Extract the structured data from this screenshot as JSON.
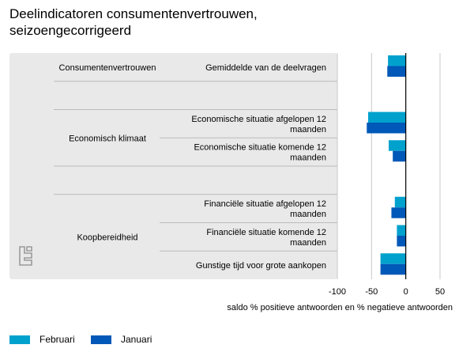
{
  "title_lines": [
    "Deelindicatoren consumentenvertrouwen,",
    "seizoengecorrigeerd"
  ],
  "colors": {
    "februari": "#00a1cd",
    "januari": "#0058b8",
    "panel": "#e9e9e9",
    "grid": "#c8c8c8",
    "zero": "#000000"
  },
  "logo": "cbs-logo-icon",
  "chart_data": {
    "type": "bar",
    "orientation": "horizontal",
    "groups": [
      {
        "name": "Consumentenvertrouwen",
        "rows": [
          0
        ]
      },
      {
        "name": "Economisch klimaat",
        "rows": [
          2,
          3
        ]
      },
      {
        "name": "Koopbereidheid",
        "rows": [
          5,
          6,
          7
        ]
      }
    ],
    "categories": [
      [
        "Gemiddelde van de deelvragen"
      ],
      [],
      [
        "Economische situatie afgelopen 12",
        "maanden"
      ],
      [
        "Economische situatie komende 12",
        "maanden"
      ],
      [],
      [
        "Financiële situatie afgelopen 12",
        "maanden"
      ],
      [
        "Financiële situatie komende 12",
        "maanden"
      ],
      [
        "Gunstige tijd voor grote aankopen"
      ]
    ],
    "series": [
      {
        "name": "Februari",
        "color": "#00a1cd",
        "values": [
          -26,
          null,
          -55,
          -25,
          null,
          -16,
          -13,
          -37
        ]
      },
      {
        "name": "Januari",
        "color": "#0058b8",
        "values": [
          -27,
          null,
          -57,
          -19,
          null,
          -21,
          -13,
          -37
        ]
      }
    ],
    "xlim": [
      -100,
      50
    ],
    "xticks": [
      -100,
      -50,
      0,
      50
    ],
    "xlabel": "saldo % positieve antwoorden en % negatieve antwoorden"
  }
}
